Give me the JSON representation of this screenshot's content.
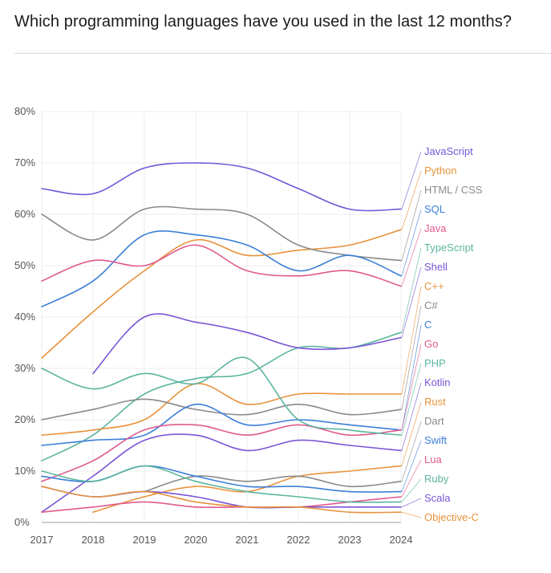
{
  "page": {
    "title": "Which programming languages have you used in the last 12 months?"
  },
  "chart_data": {
    "type": "line",
    "title": "Which programming languages have you used in the last 12 months?",
    "xlabel": "",
    "ylabel": "",
    "x": [
      2017,
      2018,
      2019,
      2020,
      2021,
      2022,
      2023,
      2024
    ],
    "x_tick_labels": [
      "2017",
      "2018",
      "2019",
      "2020",
      "2021",
      "2022",
      "2023",
      "2024"
    ],
    "y_tick_labels": [
      "0%",
      "10%",
      "20%",
      "30%",
      "40%",
      "50%",
      "60%",
      "70%",
      "80%"
    ],
    "ylim": [
      0,
      80
    ],
    "grid": true,
    "legend_placement": "right",
    "series": [
      {
        "name": "JavaScript",
        "color": "#6a5bd8",
        "values": [
          65,
          64,
          69,
          70,
          69,
          65,
          61,
          61
        ]
      },
      {
        "name": "Python",
        "color": "#e8923a",
        "values": [
          32,
          41,
          49,
          55,
          52,
          53,
          54,
          57
        ]
      },
      {
        "name": "HTML / CSS",
        "color": "#8a8a8a",
        "values": [
          60,
          55,
          61,
          61,
          60,
          54,
          52,
          51
        ]
      },
      {
        "name": "SQL",
        "color": "#3c7fd8",
        "values": [
          42,
          47,
          56,
          56,
          54,
          49,
          52,
          48
        ]
      },
      {
        "name": "Java",
        "color": "#e05a8e",
        "values": [
          47,
          51,
          50,
          54,
          49,
          48,
          49,
          46
        ]
      },
      {
        "name": "TypeScript",
        "color": "#5bb5a0",
        "values": [
          12,
          17,
          25,
          28,
          29,
          34,
          34,
          37
        ]
      },
      {
        "name": "Shell",
        "color": "#7a55d6",
        "values": [
          null,
          29,
          40,
          39,
          37,
          34,
          34,
          36
        ]
      },
      {
        "name": "C++",
        "color": "#e8923a",
        "values": [
          17,
          18,
          20,
          27,
          23,
          25,
          25,
          25
        ]
      },
      {
        "name": "C#",
        "color": "#8a8a8a",
        "values": [
          20,
          22,
          24,
          22,
          21,
          23,
          21,
          22
        ]
      },
      {
        "name": "C",
        "color": "#3c7fd8",
        "values": [
          15,
          16,
          17,
          23,
          19,
          20,
          19,
          18
        ]
      },
      {
        "name": "Go",
        "color": "#e05a8e",
        "values": [
          8,
          12,
          18,
          19,
          17,
          19,
          17,
          18
        ]
      },
      {
        "name": "PHP",
        "color": "#5bb5a0",
        "values": [
          30,
          26,
          29,
          27,
          32,
          20,
          18,
          17
        ]
      },
      {
        "name": "Kotlin",
        "color": "#7a55d6",
        "values": [
          2,
          9,
          16,
          17,
          14,
          16,
          15,
          14
        ]
      },
      {
        "name": "Rust",
        "color": "#e8923a",
        "values": [
          null,
          2,
          5,
          7,
          6,
          9,
          10,
          11
        ]
      },
      {
        "name": "Dart",
        "color": "#8a8a8a",
        "values": [
          null,
          null,
          6,
          9,
          8,
          9,
          7,
          8
        ]
      },
      {
        "name": "Swift",
        "color": "#3c7fd8",
        "values": [
          9,
          8,
          11,
          9,
          7,
          7,
          6,
          6
        ]
      },
      {
        "name": "Lua",
        "color": "#e05a8e",
        "values": [
          2,
          3,
          4,
          3,
          3,
          3,
          4,
          5
        ]
      },
      {
        "name": "Ruby",
        "color": "#5bb5a0",
        "values": [
          10,
          8,
          11,
          8,
          6,
          5,
          4,
          4
        ]
      },
      {
        "name": "Scala",
        "color": "#7a55d6",
        "values": [
          7,
          5,
          6,
          5,
          3,
          3,
          3,
          3
        ]
      },
      {
        "name": "Objective-C",
        "color": "#e8923a",
        "values": [
          7,
          5,
          6,
          4,
          3,
          3,
          2,
          2
        ]
      }
    ]
  }
}
